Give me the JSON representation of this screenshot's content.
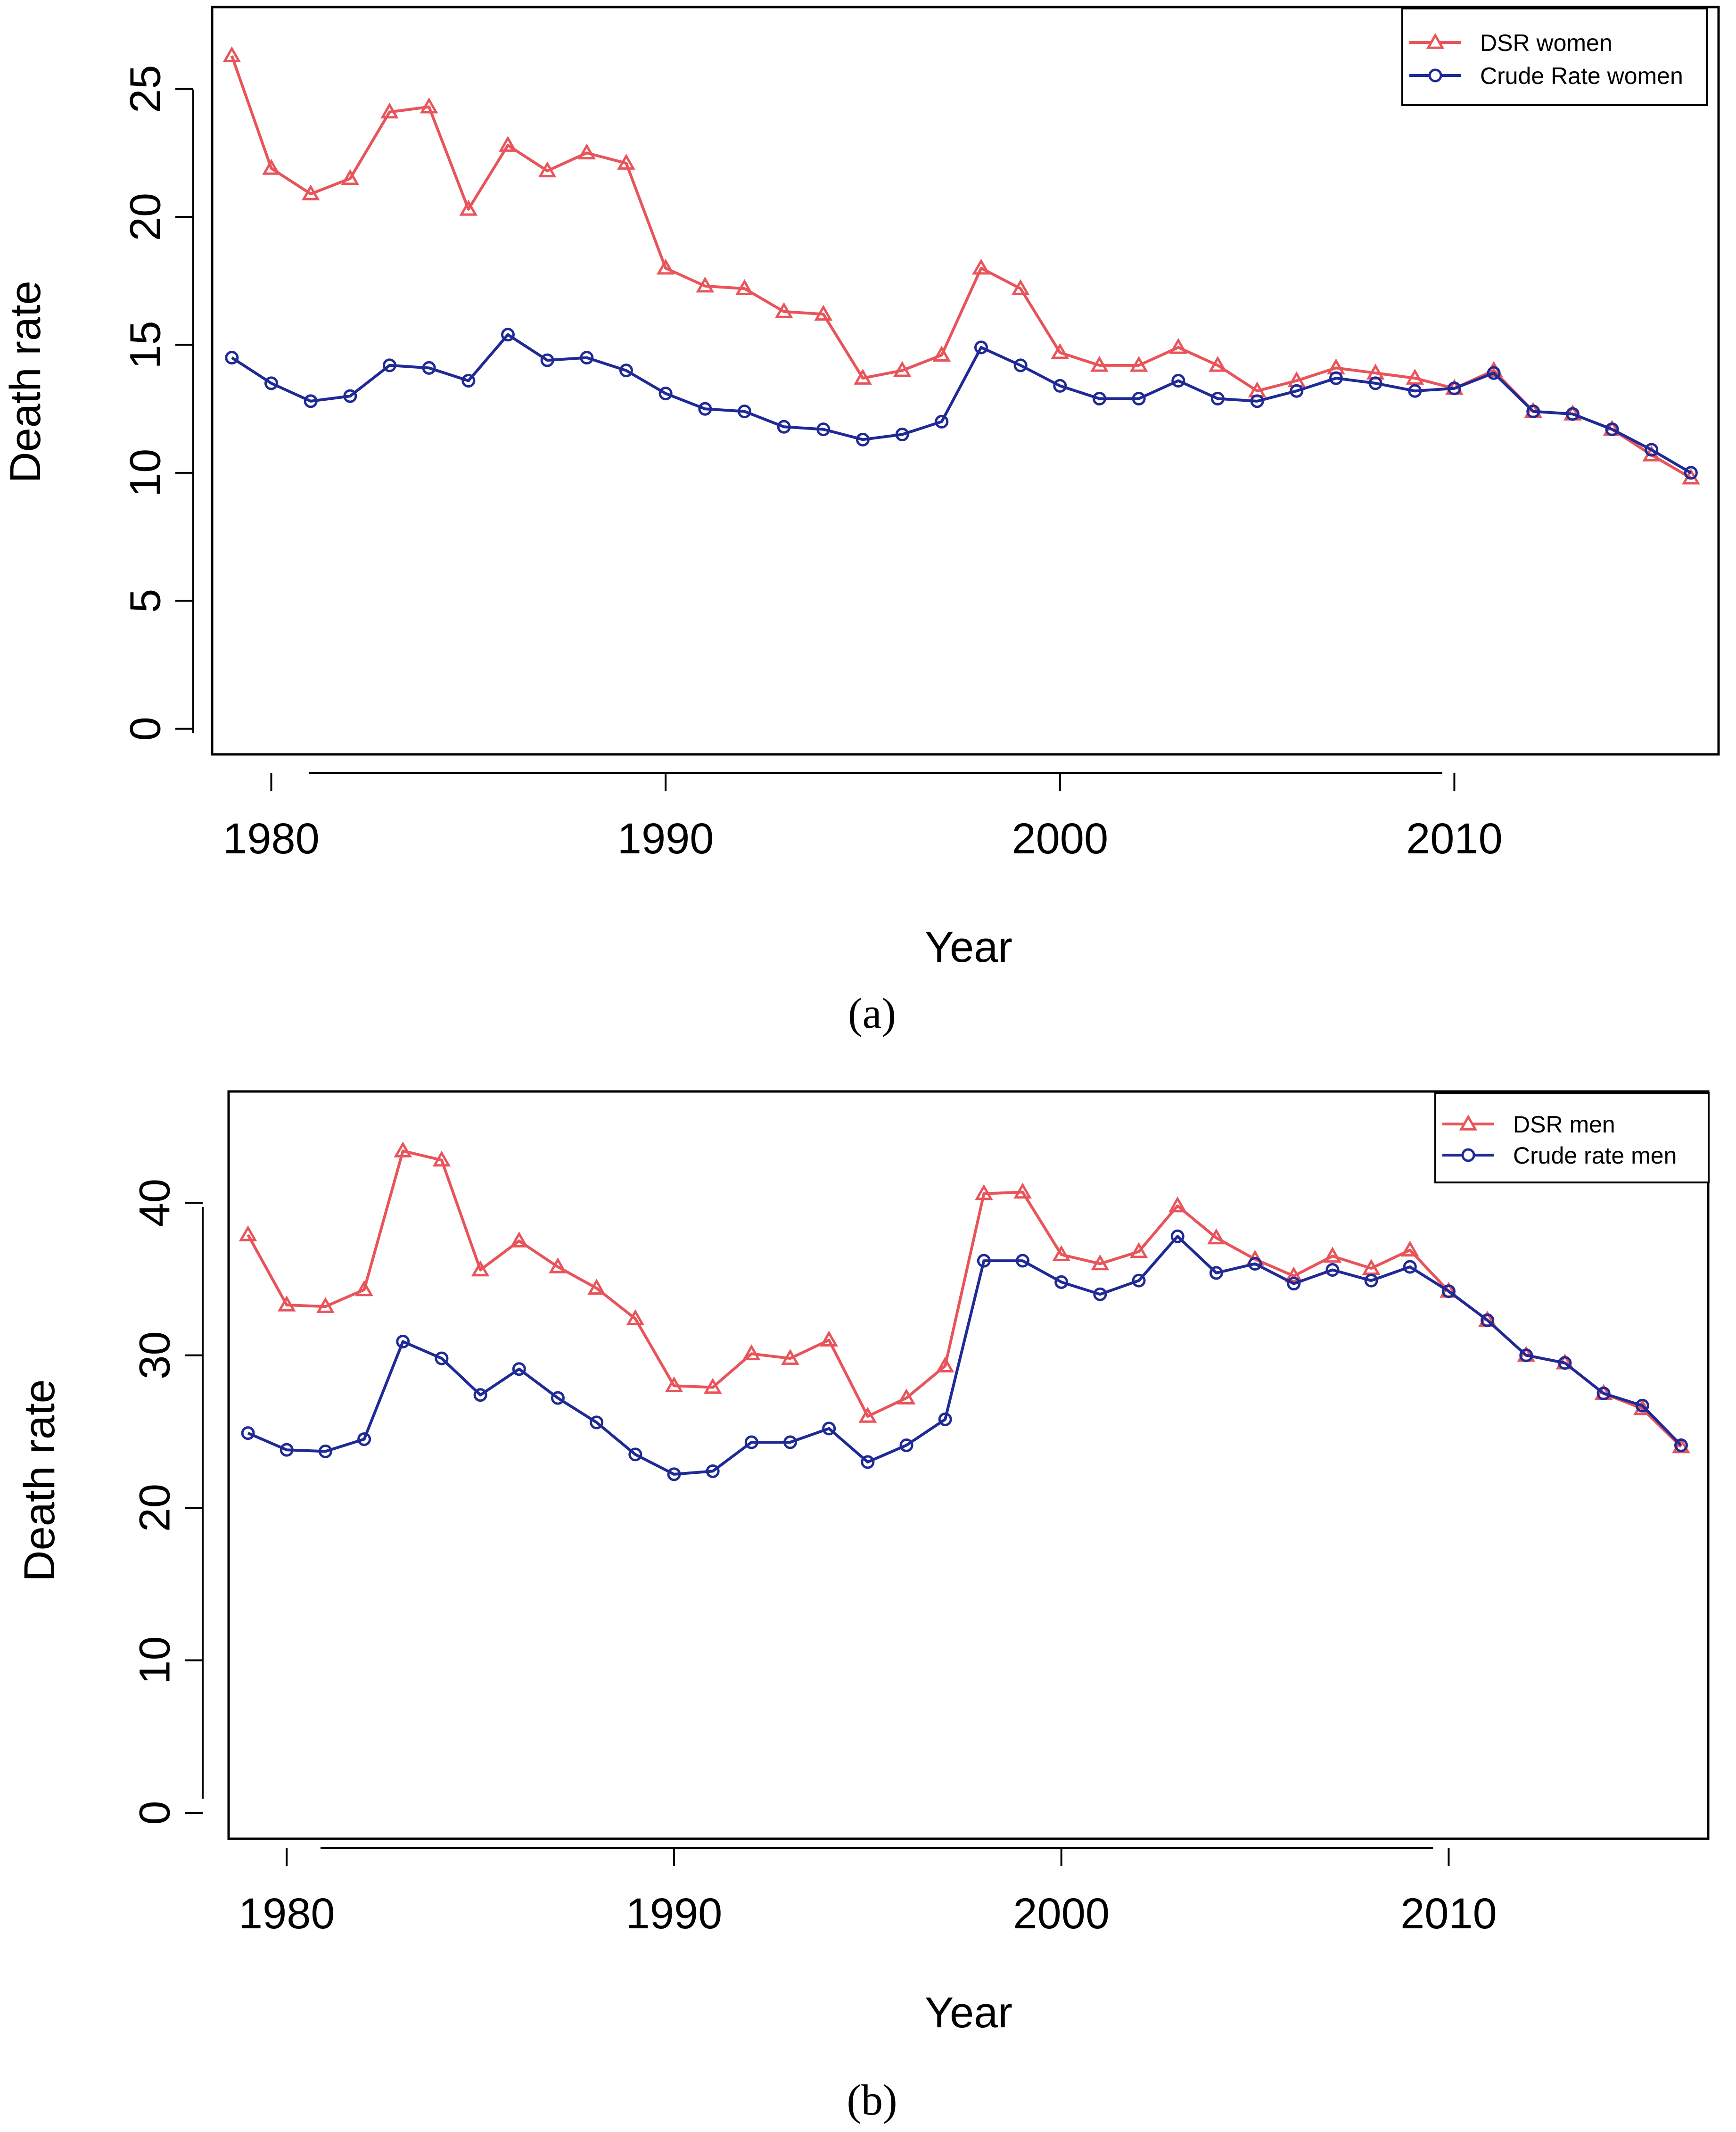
{
  "chart_data": [
    {
      "type": "line",
      "caption": "(a)",
      "xlabel": "Year",
      "ylabel": "Death rate",
      "xlim": [
        1978.5,
        2016.7
      ],
      "ylim": [
        -1.0,
        28.2
      ],
      "xticks": [
        "1980",
        "1990",
        "2000",
        "2010"
      ],
      "yticks": [
        "0",
        "5",
        "10",
        "15",
        "20",
        "25"
      ],
      "legend_position": "top-right",
      "x": [
        1979,
        1980,
        1981,
        1982,
        1983,
        1984,
        1985,
        1986,
        1987,
        1988,
        1989,
        1990,
        1991,
        1992,
        1993,
        1994,
        1995,
        1996,
        1997,
        1998,
        1999,
        2000,
        2001,
        2002,
        2003,
        2004,
        2005,
        2006,
        2007,
        2008,
        2009,
        2010,
        2011,
        2012,
        2013,
        2014,
        2015,
        2016
      ],
      "series": [
        {
          "name": "DSR women",
          "color": "#e8545a",
          "marker": "triangle",
          "values": [
            26.3,
            21.9,
            20.9,
            21.5,
            24.1,
            24.3,
            20.3,
            22.8,
            21.8,
            22.5,
            22.1,
            18.0,
            17.3,
            17.2,
            16.3,
            16.2,
            13.7,
            14.0,
            14.6,
            18.0,
            17.2,
            14.7,
            14.2,
            14.2,
            14.9,
            14.2,
            13.2,
            13.6,
            14.1,
            13.9,
            13.7,
            13.3,
            14.0,
            12.4,
            12.3,
            11.7,
            10.7,
            9.8
          ]
        },
        {
          "name": "Crude Rate women",
          "color": "#1f2a96",
          "marker": "circle",
          "values": [
            14.5,
            13.5,
            12.8,
            13.0,
            14.2,
            14.1,
            13.6,
            15.4,
            14.4,
            14.5,
            14.0,
            13.1,
            12.5,
            12.4,
            11.8,
            11.7,
            11.3,
            11.5,
            12.0,
            14.9,
            14.2,
            13.4,
            12.9,
            12.9,
            13.6,
            12.9,
            12.8,
            13.2,
            13.7,
            13.5,
            13.2,
            13.3,
            13.9,
            12.4,
            12.3,
            11.7,
            10.9,
            10.0
          ]
        }
      ]
    },
    {
      "type": "line",
      "caption": "(b)",
      "xlabel": "Year",
      "ylabel": "Death rate",
      "xlim": [
        1978.5,
        2016.7
      ],
      "ylim": [
        -1.7,
        47.3
      ],
      "xticks": [
        "1980",
        "1990",
        "2000",
        "2010"
      ],
      "yticks": [
        "0",
        "10",
        "20",
        "30",
        "40"
      ],
      "legend_position": "top-right",
      "x": [
        1979,
        1980,
        1981,
        1982,
        1983,
        1984,
        1985,
        1986,
        1987,
        1988,
        1989,
        1990,
        1991,
        1992,
        1993,
        1994,
        1995,
        1996,
        1997,
        1998,
        1999,
        2000,
        2001,
        2002,
        2003,
        2004,
        2005,
        2006,
        2007,
        2008,
        2009,
        2010,
        2011,
        2012,
        2013,
        2014,
        2015,
        2016
      ],
      "series": [
        {
          "name": "DSR men",
          "color": "#e8545a",
          "marker": "triangle",
          "values": [
            37.9,
            33.3,
            33.2,
            34.3,
            43.4,
            42.8,
            35.6,
            37.5,
            35.8,
            34.4,
            32.4,
            28.0,
            27.9,
            30.1,
            29.8,
            31.0,
            26.0,
            27.2,
            29.3,
            40.6,
            40.7,
            36.6,
            36.0,
            36.8,
            39.8,
            37.7,
            36.3,
            35.2,
            36.5,
            35.7,
            36.9,
            34.2,
            32.3,
            30.0,
            29.5,
            27.5,
            26.5,
            24.0
          ]
        },
        {
          "name": "Crude rate men",
          "color": "#1f2a96",
          "marker": "circle",
          "values": [
            24.9,
            23.8,
            23.7,
            24.5,
            30.9,
            29.8,
            27.4,
            29.1,
            27.2,
            25.6,
            23.5,
            22.2,
            22.4,
            24.3,
            24.3,
            25.2,
            23.0,
            24.1,
            25.8,
            36.2,
            36.2,
            34.8,
            34.0,
            34.9,
            37.8,
            35.4,
            36.0,
            34.7,
            35.6,
            34.9,
            35.8,
            34.2,
            32.3,
            30.0,
            29.5,
            27.5,
            26.7,
            24.1
          ]
        }
      ]
    }
  ]
}
